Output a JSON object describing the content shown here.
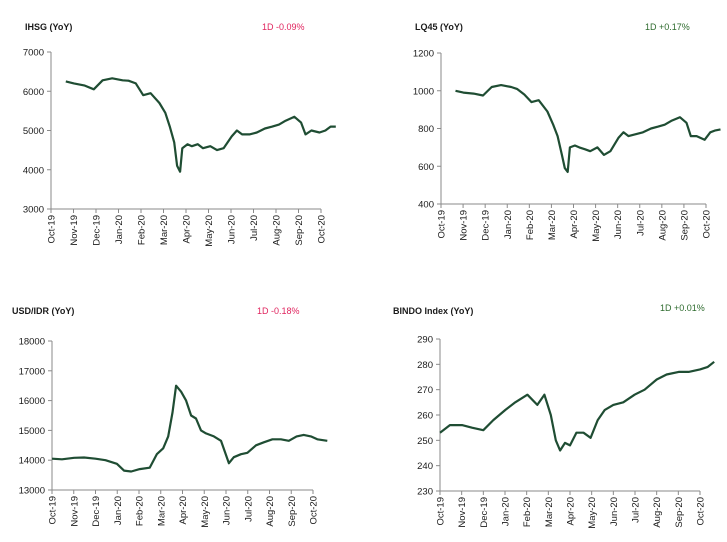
{
  "charts": [
    {
      "title": "IHSG (YoY)",
      "change": "1D -0.09%",
      "change_color": "#e0245e",
      "line_color": "#1f4d33"
    },
    {
      "title": "LQ45 (YoY)",
      "change": "1D +0.17%",
      "change_color": "#2e6b2e",
      "line_color": "#1f4d33"
    },
    {
      "title": "USD/IDR  (YoY)",
      "change": "1D -0.18%",
      "change_color": "#e0245e",
      "line_color": "#1f4d33"
    },
    {
      "title": "BINDO Index (YoY)",
      "change": "1D +0.01%",
      "change_color": "#2e6b2e",
      "line_color": "#1f4d33"
    }
  ],
  "chart_data": [
    {
      "type": "line",
      "title": "IHSG (YoY)",
      "xlabel": "",
      "ylabel": "",
      "x_tick_labels": [
        "Oct-19",
        "Nov-19",
        "Dec-19",
        "Jan-20",
        "Feb-20",
        "Mar-20",
        "Apr-20",
        "May-20",
        "Jun-20",
        "Jul-20",
        "Aug-20",
        "Sep-20",
        "Oct-20"
      ],
      "y_ticks": [
        3000,
        4000,
        5000,
        6000,
        7000
      ],
      "ylim": [
        3000,
        7000
      ],
      "grid": false,
      "series": [
        {
          "x": [
            "2019-10-21",
            "2019-11-01",
            "2019-11-15",
            "2019-11-28",
            "2019-12-10",
            "2019-12-23",
            "2020-01-06",
            "2020-01-14",
            "2020-01-24",
            "2020-02-03",
            "2020-02-13",
            "2020-02-25",
            "2020-03-04",
            "2020-03-10",
            "2020-03-16",
            "2020-03-20",
            "2020-03-24",
            "2020-03-27",
            "2020-04-03",
            "2020-04-09",
            "2020-04-17",
            "2020-04-24",
            "2020-05-04",
            "2020-05-13",
            "2020-05-22",
            "2020-06-02",
            "2020-06-09",
            "2020-06-16",
            "2020-06-26",
            "2020-07-06",
            "2020-07-17",
            "2020-07-27",
            "2020-08-05",
            "2020-08-14",
            "2020-08-26",
            "2020-09-04",
            "2020-09-10",
            "2020-09-18",
            "2020-09-29",
            "2020-10-07",
            "2020-10-14",
            "2020-10-21"
          ],
          "y": [
            6250,
            6200,
            6150,
            6050,
            6280,
            6330,
            6280,
            6270,
            6200,
            5900,
            5950,
            5700,
            5450,
            5100,
            4700,
            4100,
            3950,
            4550,
            4650,
            4600,
            4650,
            4550,
            4600,
            4500,
            4550,
            4850,
            5000,
            4900,
            4900,
            4950,
            5050,
            5100,
            5150,
            5250,
            5350,
            5200,
            4900,
            5000,
            4950,
            5000,
            5100,
            5100
          ]
        }
      ]
    },
    {
      "type": "line",
      "title": "LQ45 (YoY)",
      "xlabel": "",
      "ylabel": "",
      "x_tick_labels": [
        "Oct-19",
        "Nov-19",
        "Dec-19",
        "Jan-20",
        "Feb-20",
        "Mar-20",
        "Apr-20",
        "May-20",
        "Jun-20",
        "Jul-20",
        "Aug-20",
        "Sep-20",
        "Oct-20"
      ],
      "y_ticks": [
        400,
        600,
        800,
        1000,
        1200
      ],
      "ylim": [
        400,
        1200
      ],
      "grid": false,
      "series": [
        {
          "x": [
            "2019-10-21",
            "2019-11-01",
            "2019-11-15",
            "2019-11-28",
            "2019-12-10",
            "2019-12-23",
            "2020-01-06",
            "2020-01-14",
            "2020-01-24",
            "2020-02-03",
            "2020-02-13",
            "2020-02-25",
            "2020-03-04",
            "2020-03-10",
            "2020-03-16",
            "2020-03-20",
            "2020-03-24",
            "2020-03-27",
            "2020-04-03",
            "2020-04-09",
            "2020-04-17",
            "2020-04-24",
            "2020-05-04",
            "2020-05-13",
            "2020-05-22",
            "2020-06-02",
            "2020-06-09",
            "2020-06-16",
            "2020-06-26",
            "2020-07-06",
            "2020-07-17",
            "2020-07-27",
            "2020-08-05",
            "2020-08-14",
            "2020-08-26",
            "2020-09-04",
            "2020-09-10",
            "2020-09-18",
            "2020-09-29",
            "2020-10-07",
            "2020-10-14",
            "2020-10-21"
          ],
          "y": [
            1000,
            990,
            985,
            975,
            1020,
            1030,
            1020,
            1010,
            980,
            940,
            950,
            890,
            820,
            760,
            660,
            590,
            570,
            700,
            710,
            700,
            690,
            680,
            700,
            660,
            680,
            750,
            780,
            760,
            770,
            780,
            800,
            810,
            820,
            840,
            860,
            830,
            760,
            760,
            740,
            780,
            790,
            795
          ]
        }
      ]
    },
    {
      "type": "line",
      "title": "USD/IDR  (YoY)",
      "xlabel": "",
      "ylabel": "",
      "x_tick_labels": [
        "Oct-19",
        "Nov-19",
        "Dec-19",
        "Jan-20",
        "Feb-20",
        "Mar-20",
        "Apr-20",
        "May-20",
        "Jun-20",
        "Jul-20",
        "Aug-20",
        "Sep-20",
        "Oct-20"
      ],
      "y_ticks": [
        13000,
        14000,
        15000,
        16000,
        17000,
        18000
      ],
      "ylim": [
        13000,
        18000
      ],
      "grid": false,
      "series": [
        {
          "x": [
            "2019-10-01",
            "2019-10-15",
            "2019-11-01",
            "2019-11-15",
            "2019-12-01",
            "2019-12-15",
            "2019-12-31",
            "2020-01-10",
            "2020-01-20",
            "2020-02-01",
            "2020-02-15",
            "2020-02-25",
            "2020-03-05",
            "2020-03-12",
            "2020-03-18",
            "2020-03-23",
            "2020-03-30",
            "2020-04-06",
            "2020-04-13",
            "2020-04-20",
            "2020-04-27",
            "2020-05-04",
            "2020-05-15",
            "2020-05-25",
            "2020-06-05",
            "2020-06-12",
            "2020-06-22",
            "2020-07-01",
            "2020-07-13",
            "2020-07-24",
            "2020-08-05",
            "2020-08-17",
            "2020-08-28",
            "2020-09-08",
            "2020-09-18",
            "2020-09-28",
            "2020-10-07",
            "2020-10-21"
          ],
          "y": [
            14050,
            14030,
            14080,
            14090,
            14050,
            14000,
            13880,
            13650,
            13620,
            13700,
            13750,
            14200,
            14400,
            14800,
            15600,
            16500,
            16300,
            16000,
            15500,
            15400,
            15000,
            14900,
            14800,
            14650,
            13900,
            14100,
            14200,
            14250,
            14500,
            14600,
            14700,
            14700,
            14650,
            14800,
            14850,
            14800,
            14700,
            14650
          ]
        }
      ]
    },
    {
      "type": "line",
      "title": "BINDO Index (YoY)",
      "xlabel": "",
      "ylabel": "",
      "x_tick_labels": [
        "Oct-19",
        "Nov-19",
        "Dec-19",
        "Jan-20",
        "Feb-20",
        "Mar-20",
        "Apr-20",
        "May-20",
        "Jun-20",
        "Jul-20",
        "Aug-20",
        "Sep-20",
        "Oct-20"
      ],
      "y_ticks": [
        230,
        240,
        250,
        260,
        270,
        280,
        290
      ],
      "ylim": [
        230,
        290
      ],
      "grid": false,
      "series": [
        {
          "x": [
            "2019-10-01",
            "2019-10-15",
            "2019-11-01",
            "2019-11-15",
            "2019-12-01",
            "2019-12-15",
            "2020-01-01",
            "2020-01-15",
            "2020-02-01",
            "2020-02-15",
            "2020-02-25",
            "2020-03-05",
            "2020-03-12",
            "2020-03-18",
            "2020-03-25",
            "2020-04-01",
            "2020-04-10",
            "2020-04-20",
            "2020-04-30",
            "2020-05-10",
            "2020-05-20",
            "2020-06-01",
            "2020-06-15",
            "2020-07-01",
            "2020-07-15",
            "2020-08-01",
            "2020-08-15",
            "2020-09-01",
            "2020-09-15",
            "2020-10-01",
            "2020-10-12",
            "2020-10-21"
          ],
          "y": [
            253,
            256,
            256,
            255,
            254,
            258,
            262,
            265,
            268,
            264,
            268,
            260,
            250,
            246,
            249,
            248,
            253,
            253,
            251,
            258,
            262,
            264,
            265,
            268,
            270,
            274,
            276,
            277,
            277,
            278,
            279,
            281
          ]
        }
      ]
    }
  ]
}
